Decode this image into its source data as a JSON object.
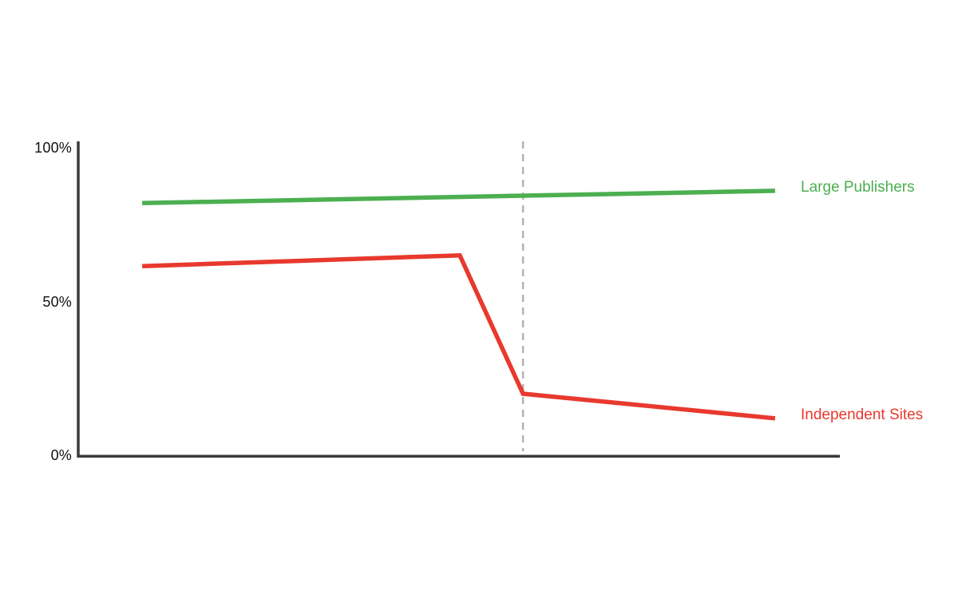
{
  "page": {
    "background_color": "#ffffff"
  },
  "chart_data": {
    "type": "line",
    "title": "",
    "xlabel": "",
    "ylabel": "",
    "ylim": [
      0,
      100
    ],
    "grid": false,
    "legend_position": "right-of-line-ends",
    "axis_color": "#3b3b3b",
    "tick_color": "#111111",
    "yticks": [
      {
        "value": 100,
        "label": "100%"
      },
      {
        "value": 50,
        "label": "50%"
      },
      {
        "value": 0,
        "label": "0%"
      }
    ],
    "event_line": {
      "x": 58.4,
      "style": "dashed",
      "color": "#b3b3b3"
    },
    "series": [
      {
        "name": "Large Publishers",
        "color": "#4caf50",
        "points": [
          {
            "x": 8.4,
            "y": 82
          },
          {
            "x": 91.5,
            "y": 86
          }
        ]
      },
      {
        "name": "Independent Sites",
        "color": "#e8392e",
        "points": [
          {
            "x": 8.4,
            "y": 61.5
          },
          {
            "x": 50.1,
            "y": 65
          },
          {
            "x": 58.4,
            "y": 20
          },
          {
            "x": 91.5,
            "y": 12
          }
        ]
      }
    ]
  }
}
